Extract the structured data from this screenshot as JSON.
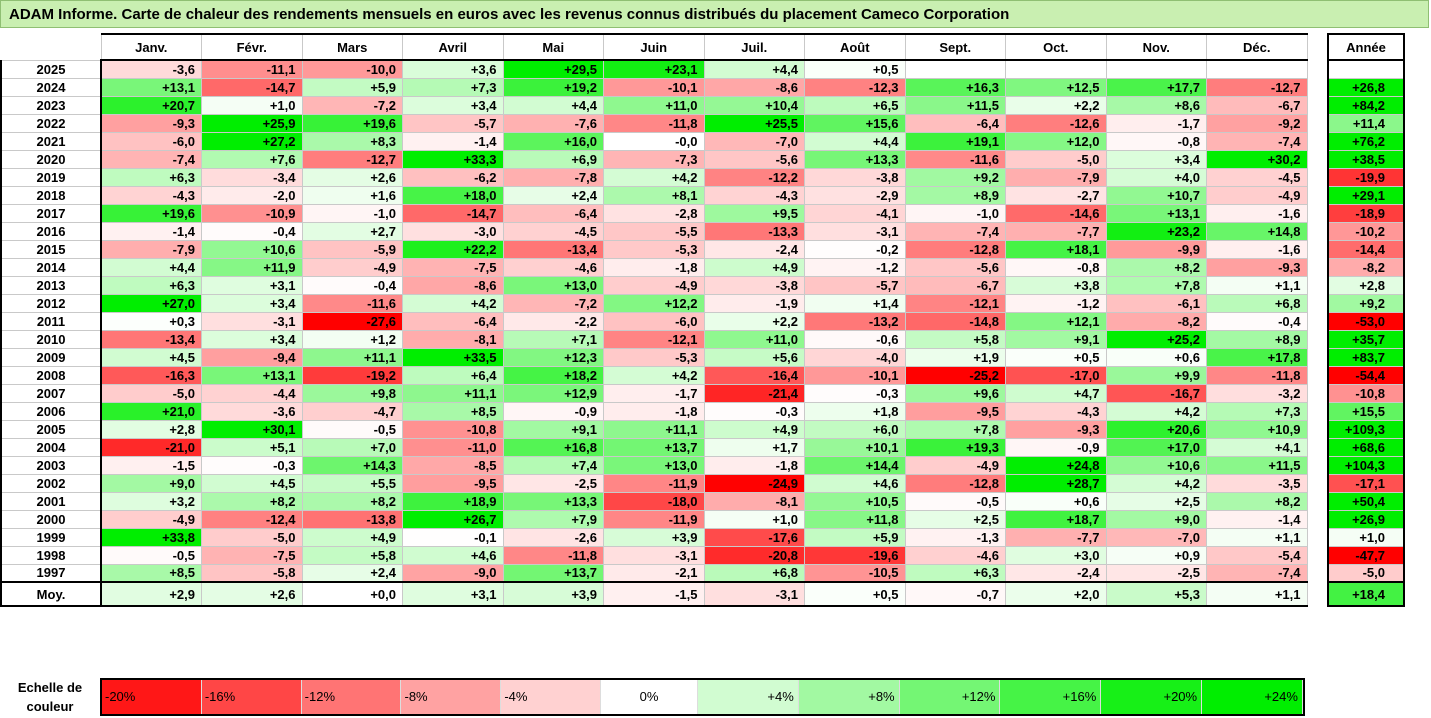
{
  "title": "ADAM Informe. Carte de chaleur des rendements mensuels en euros avec les revenus connus distribués du placement Cameco Corporation",
  "chart_data": {
    "type": "heatmap",
    "months": [
      "Janv.",
      "Févr.",
      "Mars",
      "Avril",
      "Mai",
      "Juin",
      "Juil.",
      "Août",
      "Sept.",
      "Oct.",
      "Nov.",
      "Déc."
    ],
    "annual_header": "Année",
    "rows": [
      {
        "year": "2025",
        "values": [
          "-3,6",
          "-11,1",
          "-10,0",
          "+3,6",
          "+29,5",
          "+23,1",
          "+4,4",
          "+0,5",
          "",
          "",
          "",
          ""
        ],
        "annual": ""
      },
      {
        "year": "2024",
        "values": [
          "+13,1",
          "-14,7",
          "+5,9",
          "+7,3",
          "+19,2",
          "-10,1",
          "-8,6",
          "-12,3",
          "+16,3",
          "+12,5",
          "+17,7",
          "-12,7"
        ],
        "annual": "+26,8"
      },
      {
        "year": "2023",
        "values": [
          "+20,7",
          "+1,0",
          "-7,2",
          "+3,4",
          "+4,4",
          "+11,0",
          "+10,4",
          "+6,5",
          "+11,5",
          "+2,2",
          "+8,6",
          "-6,7"
        ],
        "annual": "+84,2"
      },
      {
        "year": "2022",
        "values": [
          "-9,3",
          "+25,9",
          "+19,6",
          "-5,7",
          "-7,6",
          "-11,8",
          "+25,5",
          "+15,6",
          "-6,4",
          "-12,6",
          "-1,7",
          "-9,2"
        ],
        "annual": "+11,4"
      },
      {
        "year": "2021",
        "values": [
          "-6,0",
          "+27,2",
          "+8,3",
          "-1,4",
          "+16,0",
          "-0,0",
          "-7,0",
          "+4,4",
          "+19,1",
          "+12,0",
          "-0,8",
          "-7,4"
        ],
        "annual": "+76,2"
      },
      {
        "year": "2020",
        "values": [
          "-7,4",
          "+7,6",
          "-12,7",
          "+33,3",
          "+6,9",
          "-7,3",
          "-5,6",
          "+13,3",
          "-11,6",
          "-5,0",
          "+3,4",
          "+30,2"
        ],
        "annual": "+38,5"
      },
      {
        "year": "2019",
        "values": [
          "+6,3",
          "-3,4",
          "+2,6",
          "-6,2",
          "-7,8",
          "+4,2",
          "-12,2",
          "-3,8",
          "+9,2",
          "-7,9",
          "+4,0",
          "-4,5"
        ],
        "annual": "-19,9"
      },
      {
        "year": "2018",
        "values": [
          "-4,3",
          "-2,0",
          "+1,6",
          "+18,0",
          "+2,4",
          "+8,1",
          "-4,3",
          "-2,9",
          "+8,9",
          "-2,7",
          "+10,7",
          "-4,9"
        ],
        "annual": "+29,1"
      },
      {
        "year": "2017",
        "values": [
          "+19,6",
          "-10,9",
          "-1,0",
          "-14,7",
          "-6,4",
          "-2,8",
          "+9,5",
          "-4,1",
          "-1,0",
          "-14,6",
          "+13,1",
          "-1,6"
        ],
        "annual": "-18,9"
      },
      {
        "year": "2016",
        "values": [
          "-1,4",
          "-0,4",
          "+2,7",
          "-3,0",
          "-4,5",
          "-5,5",
          "-13,3",
          "-3,1",
          "-7,4",
          "-7,7",
          "+23,2",
          "+14,8"
        ],
        "annual": "-10,2"
      },
      {
        "year": "2015",
        "values": [
          "-7,9",
          "+10,6",
          "-5,9",
          "+22,2",
          "-13,4",
          "-5,3",
          "-2,4",
          "-0,2",
          "-12,8",
          "+18,1",
          "-9,9",
          "-1,6"
        ],
        "annual": "-14,4"
      },
      {
        "year": "2014",
        "values": [
          "+4,4",
          "+11,9",
          "-4,9",
          "-7,5",
          "-4,6",
          "-1,8",
          "+4,9",
          "-1,2",
          "-5,6",
          "-0,8",
          "+8,2",
          "-9,3"
        ],
        "annual": "-8,2"
      },
      {
        "year": "2013",
        "values": [
          "+6,3",
          "+3,1",
          "-0,4",
          "-8,6",
          "+13,0",
          "-4,9",
          "-3,8",
          "-5,7",
          "-6,7",
          "+3,8",
          "+7,8",
          "+1,1"
        ],
        "annual": "+2,8"
      },
      {
        "year": "2012",
        "values": [
          "+27,0",
          "+3,4",
          "-11,6",
          "+4,2",
          "-7,2",
          "+12,2",
          "-1,9",
          "+1,4",
          "-12,1",
          "-1,2",
          "-6,1",
          "+6,8"
        ],
        "annual": "+9,2"
      },
      {
        "year": "2011",
        "values": [
          "+0,3",
          "-3,1",
          "-27,6",
          "-6,4",
          "-2,2",
          "-6,0",
          "+2,2",
          "-13,2",
          "-14,8",
          "+12,1",
          "-8,2",
          "-0,4"
        ],
        "annual": "-53,0"
      },
      {
        "year": "2010",
        "values": [
          "-13,4",
          "+3,4",
          "+1,2",
          "-8,1",
          "+7,1",
          "-12,1",
          "+11,0",
          "-0,6",
          "+5,8",
          "+9,1",
          "+25,2",
          "+8,9"
        ],
        "annual": "+35,7"
      },
      {
        "year": "2009",
        "values": [
          "+4,5",
          "-9,4",
          "+11,1",
          "+33,5",
          "+12,3",
          "-5,3",
          "+5,6",
          "-4,0",
          "+1,9",
          "+0,5",
          "+0,6",
          "+17,8"
        ],
        "annual": "+83,7"
      },
      {
        "year": "2008",
        "values": [
          "-16,3",
          "+13,1",
          "-19,2",
          "+6,4",
          "+18,2",
          "+4,2",
          "-16,4",
          "-10,1",
          "-25,2",
          "-17,0",
          "+9,9",
          "-11,8"
        ],
        "annual": "-54,4"
      },
      {
        "year": "2007",
        "values": [
          "-5,0",
          "-4,4",
          "+9,8",
          "+11,1",
          "+12,9",
          "-1,7",
          "-21,4",
          "-0,3",
          "+9,6",
          "+4,7",
          "-16,7",
          "-3,2"
        ],
        "annual": "-10,8"
      },
      {
        "year": "2006",
        "values": [
          "+21,0",
          "-3,6",
          "-4,7",
          "+8,5",
          "-0,9",
          "-1,8",
          "-0,3",
          "+1,8",
          "-9,5",
          "-4,3",
          "+4,2",
          "+7,3"
        ],
        "annual": "+15,5"
      },
      {
        "year": "2005",
        "values": [
          "+2,8",
          "+30,1",
          "-0,5",
          "-10,8",
          "+9,1",
          "+11,1",
          "+4,9",
          "+6,0",
          "+7,8",
          "-9,3",
          "+20,6",
          "+10,9"
        ],
        "annual": "+109,3"
      },
      {
        "year": "2004",
        "values": [
          "-21,0",
          "+5,1",
          "+7,0",
          "-11,0",
          "+16,8",
          "+13,7",
          "+1,7",
          "+10,1",
          "+19,3",
          "-0,9",
          "+17,0",
          "+4,1"
        ],
        "annual": "+68,6"
      },
      {
        "year": "2003",
        "values": [
          "-1,5",
          "-0,3",
          "+14,3",
          "-8,5",
          "+7,4",
          "+13,0",
          "-1,8",
          "+14,4",
          "-4,9",
          "+24,8",
          "+10,6",
          "+11,5"
        ],
        "annual": "+104,3"
      },
      {
        "year": "2002",
        "values": [
          "+9,0",
          "+4,5",
          "+5,5",
          "-9,5",
          "-2,5",
          "-11,9",
          "-24,9",
          "+4,6",
          "-12,8",
          "+28,7",
          "+4,2",
          "-3,5"
        ],
        "annual": "-17,1"
      },
      {
        "year": "2001",
        "values": [
          "+3,2",
          "+8,2",
          "+8,2",
          "+18,9",
          "+13,3",
          "-18,0",
          "-8,1",
          "+10,5",
          "-0,5",
          "+0,6",
          "+2,5",
          "+8,2"
        ],
        "annual": "+50,4"
      },
      {
        "year": "2000",
        "values": [
          "-4,9",
          "-12,4",
          "-13,8",
          "+26,7",
          "+7,9",
          "-11,9",
          "+1,0",
          "+11,8",
          "+2,5",
          "+18,7",
          "+9,0",
          "-1,4"
        ],
        "annual": "+26,9"
      },
      {
        "year": "1999",
        "values": [
          "+33,8",
          "-5,0",
          "+4,9",
          "-0,1",
          "-2,6",
          "+3,9",
          "-17,6",
          "+5,9",
          "-1,3",
          "-7,7",
          "-7,0",
          "+1,1"
        ],
        "annual": "+1,0"
      },
      {
        "year": "1998",
        "values": [
          "-0,5",
          "-7,5",
          "+5,8",
          "+4,6",
          "-11,8",
          "-3,1",
          "-20,8",
          "-19,6",
          "-4,6",
          "+3,0",
          "+0,9",
          "-5,4"
        ],
        "annual": "-47,7"
      },
      {
        "year": "1997",
        "values": [
          "+8,5",
          "-5,8",
          "+2,4",
          "-9,0",
          "+13,7",
          "-2,1",
          "+6,8",
          "-10,5",
          "+6,3",
          "-2,4",
          "-2,5",
          "-7,4"
        ],
        "annual": "-5,0"
      }
    ],
    "average": {
      "label": "Moy.",
      "values": [
        "+2,9",
        "+2,6",
        "+0,0",
        "+3,1",
        "+3,9",
        "-1,5",
        "-3,1",
        "+0,5",
        "-0,7",
        "+2,0",
        "+5,3",
        "+1,1"
      ],
      "annual": "+18,4"
    },
    "scale_label": "Echelle de couleur",
    "scale": [
      "-20%",
      "-16%",
      "-12%",
      "-8%",
      "-4%",
      "0%",
      "+4%",
      "+8%",
      "+12%",
      "+16%",
      "+20%",
      "+24%"
    ],
    "scale_values": [
      -20,
      -16,
      -12,
      -8,
      -4,
      0,
      4,
      8,
      12,
      16,
      20,
      24
    ],
    "colors": {
      "negative": "#ff0000",
      "positive": "#00ee00",
      "neutral": "#ffffff"
    }
  }
}
